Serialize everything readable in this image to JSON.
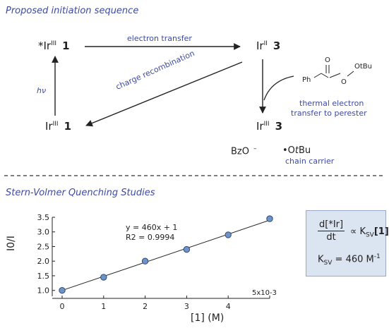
{
  "top_section": {
    "title": "Proposed initiation sequence",
    "species": {
      "excited": {
        "prefix": "*Ir",
        "oxidation": "III",
        "label": "1"
      },
      "ir2": {
        "prefix": "Ir",
        "oxidation": "II",
        "label": "3"
      },
      "ir3_left": {
        "prefix": "Ir",
        "oxidation": "III",
        "label": "1"
      },
      "ir3_right": {
        "prefix": "Ir",
        "oxidation": "III",
        "label": "3"
      }
    },
    "arrows": {
      "electron_transfer": "electron transfer",
      "charge_recombination": "charge recombination",
      "hv": "hν"
    },
    "perester": {
      "ph": "Ph",
      "o_top": "O",
      "o_ester": "O",
      "otbu": "OtBu",
      "caption_line1": "thermal electron",
      "caption_line2": "transfer to perester"
    },
    "products": {
      "bzo": "BzO",
      "bzo_charge": "–",
      "otbu_radical_prefix": "•O",
      "otbu_radical_t": "t",
      "otbu_radical_bu": "Bu",
      "chain_carrier": "chain carrier"
    }
  },
  "bottom_section": {
    "title": "Stern-Volmer Quenching Studies",
    "equation": {
      "numerator": "d[*Ir]",
      "denominator": "dt",
      "proportional": "∝",
      "ksv_symbol": "K",
      "ksv_sub": "SV",
      "ksv_bracket": "[1]",
      "ksv_value": "= 460 M",
      "ksv_exp": "-1"
    }
  },
  "chart_data": {
    "type": "scatter",
    "title": "",
    "xlabel": "[1] (M)",
    "ylabel": "I0/I",
    "x_multiplier_label": "5x10-3",
    "xlim": [
      0,
      5
    ],
    "ylim": [
      0.8,
      3.5
    ],
    "x_ticks": [
      "0",
      "1",
      "2",
      "3",
      "4"
    ],
    "y_ticks": [
      "1.0",
      "1.5",
      "2.0",
      "2.5",
      "3.0",
      "3.5"
    ],
    "fit_equation": "y = 460x + 1",
    "r_squared": "R2 = 0.9994",
    "series": [
      {
        "x": [
          0,
          1,
          2,
          3,
          4,
          5
        ],
        "y": [
          1.0,
          1.45,
          2.0,
          2.4,
          2.9,
          3.45
        ]
      }
    ],
    "fit_line": {
      "slope": 0.48,
      "intercept": 1.0
    },
    "marker_color": "#6f93c6"
  }
}
